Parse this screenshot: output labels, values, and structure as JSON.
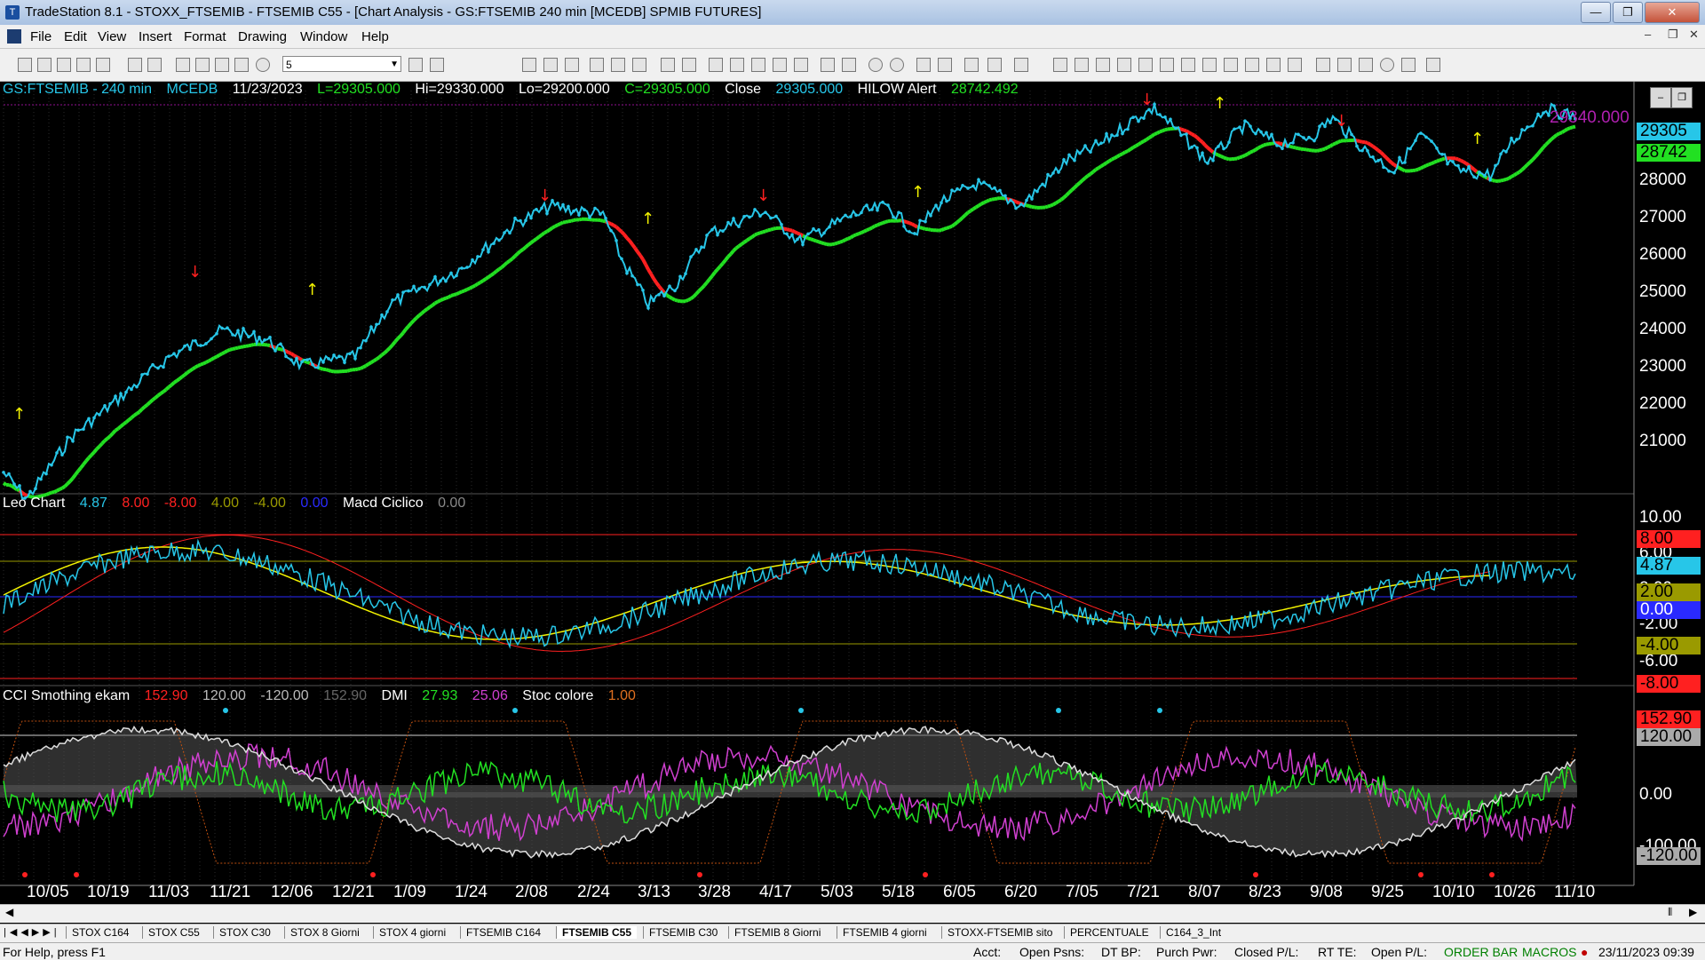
{
  "window": {
    "title": "TradeStation 8.1 - STOXX_FTSEMIB - FTSEMIB C55 - [Chart Analysis - GS:FTSEMIB  240 min  [MCEDB] SPMIB FUTURES]",
    "minimize": "—",
    "maximize": "❐",
    "close": "✕"
  },
  "menu": {
    "items": [
      "File",
      "Edit",
      "View",
      "Insert",
      "Format",
      "Drawing",
      "Window",
      "Help"
    ]
  },
  "toolbar": {
    "combo_value": "5"
  },
  "price_pane": {
    "symbol": "GS:FTSEMIB - 240 min",
    "feed": "MCEDB",
    "date": "11/23/2023",
    "last": "L=29305.000",
    "high": "Hi=29330.000",
    "low": "Lo=29200.000",
    "close_eq": "C=29305.000",
    "close_label": "Close",
    "close_value": "29305.000",
    "alert_label": "HILOW Alert",
    "alert_value": "28742.492",
    "top_line_label": "29340.000",
    "tag_price": "29305",
    "tag_alert": "28742",
    "axis": [
      "28000",
      "27000",
      "26000",
      "25000",
      "24000",
      "23000",
      "22000",
      "21000"
    ]
  },
  "osc_pane": {
    "name": "Leo Chart",
    "v1": "4.87",
    "v2": "8.00",
    "v3": "-8.00",
    "v4": "4.00",
    "v5": "-4.00",
    "v6": "0.00",
    "name2": "Macd Ciclico",
    "v7": "0.00",
    "axis": [
      "10.00",
      "6.00",
      "2.00",
      "-2.00",
      "-6.00"
    ],
    "tags": [
      "8.00",
      "4.87",
      "2.00",
      "0.00",
      "-4.00",
      "-8.00"
    ]
  },
  "cci_pane": {
    "name": "CCI Smothing ekam",
    "v1": "152.90",
    "v2": "120.00",
    "v3": "-120.00",
    "v4": "152.90",
    "dmi_label": "DMI",
    "dmi1": "27.93",
    "dmi2": "25.06",
    "stoc_label": "Stoc colore",
    "stoc": "1.00",
    "axis": [
      "0.00",
      "-100.00"
    ],
    "tags": [
      "152.90",
      "120.00",
      "-120.00"
    ]
  },
  "dates": [
    "10/05",
    "10/19",
    "11/03",
    "11/21",
    "12/06",
    "12/21",
    "1/09",
    "1/24",
    "2/08",
    "2/24",
    "3/13",
    "3/28",
    "4/17",
    "5/03",
    "5/18",
    "6/05",
    "6/20",
    "7/05",
    "7/21",
    "8/07",
    "8/23",
    "9/08",
    "9/25",
    "10/10",
    "10/26",
    "11/10"
  ],
  "tabs": [
    "STOX C164",
    "STOX C55",
    "STOX C30",
    "STOX 8 Giorni",
    "STOX 4 giorni",
    "FTSEMIB C164",
    "FTSEMIB C55",
    "FTSEMIB C30",
    "FTSEMIB 8 Giorni",
    "FTSEMIB 4 giorni",
    "STOXX-FTSEMIB sito",
    "PERCENTUALE",
    "C164_3_Int"
  ],
  "active_tab": "FTSEMIB C55",
  "status": {
    "help": "For Help, press F1",
    "acct": "Acct:",
    "open_psns": "Open Psns:",
    "dt_bp": "DT BP:",
    "purch_pwr": "Purch Pwr:",
    "closed_pl": "Closed P/L:",
    "rt_te": "RT TE:",
    "open_pl": "Open P/L:",
    "order_bar": "ORDER BAR",
    "macros": "MACROS",
    "clock": "23/11/2023 09:39"
  },
  "colors": {
    "cyan": "#27c6e8",
    "red": "#ff2020",
    "green": "#22e022",
    "yellow": "#f2f200",
    "magenta": "#d040d0",
    "blue": "#2a2aff"
  }
}
